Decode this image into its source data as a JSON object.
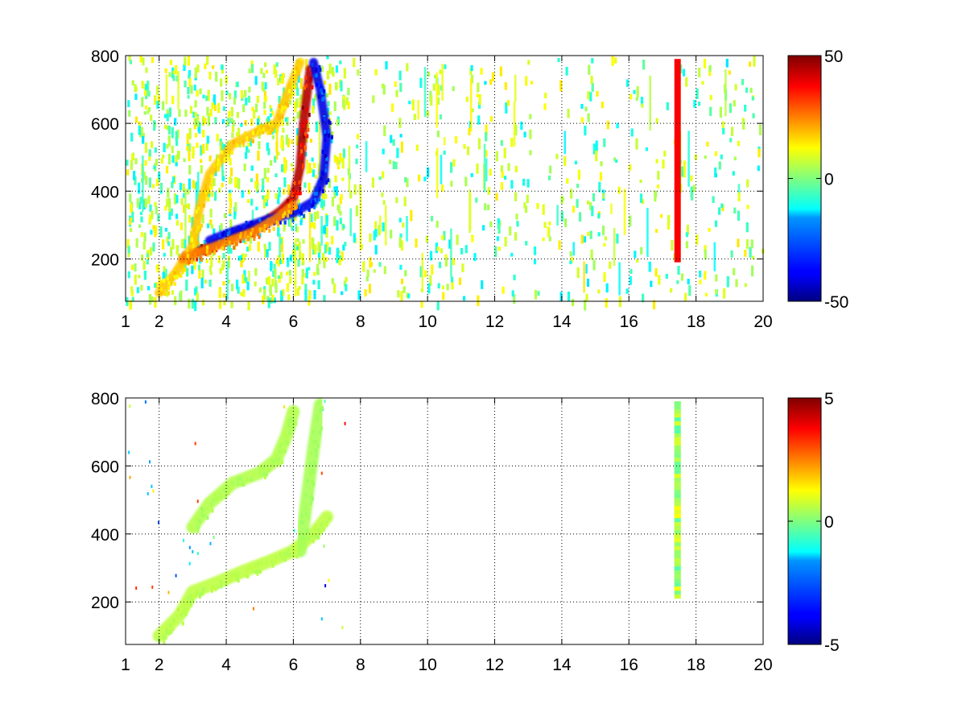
{
  "chart_data": [
    {
      "type": "heatmap",
      "title": "",
      "xlabel": "",
      "ylabel": "",
      "xlim": [
        1,
        20
      ],
      "ylim": [
        75,
        800
      ],
      "xticks": [
        "1",
        "2",
        "4",
        "6",
        "8",
        "10",
        "12",
        "14",
        "16",
        "18",
        "20"
      ],
      "yticks": [
        "200",
        "400",
        "600",
        "800"
      ],
      "grid": true,
      "grid_style": "dotted",
      "colorbar": {
        "min": -50,
        "max": 50,
        "ticks": [
          "50",
          "0",
          "-50"
        ],
        "colormap": "jet"
      },
      "features": [
        {
          "shape": "band",
          "points": [
            [
              2.8,
              210
            ],
            [
              3.5,
              235
            ],
            [
              4.2,
              270
            ],
            [
              5.0,
              300
            ],
            [
              5.6,
              340
            ],
            [
              6.0,
              380
            ],
            [
              6.2,
              470
            ],
            [
              6.3,
              600
            ],
            [
              6.5,
              760
            ]
          ],
          "value": 45
        },
        {
          "shape": "band",
          "points": [
            [
              3.5,
              255
            ],
            [
              4.3,
              285
            ],
            [
              5.2,
              315
            ],
            [
              6.0,
              335
            ],
            [
              6.6,
              370
            ],
            [
              6.9,
              440
            ],
            [
              7.0,
              560
            ],
            [
              6.8,
              700
            ],
            [
              6.6,
              780
            ]
          ],
          "value": -40
        },
        {
          "shape": "band",
          "points": [
            [
              2.0,
              100
            ],
            [
              2.5,
              160
            ],
            [
              3.0,
              240
            ],
            [
              3.2,
              350
            ],
            [
              3.5,
              450
            ],
            [
              4.2,
              540
            ],
            [
              5.0,
              580
            ],
            [
              5.5,
              600
            ],
            [
              5.8,
              680
            ],
            [
              6.2,
              780
            ]
          ],
          "value": 18
        },
        {
          "shape": "band",
          "points": [
            [
              2.7,
              200
            ],
            [
              3.2,
              220
            ],
            [
              4.0,
              250
            ],
            [
              4.8,
              280
            ],
            [
              5.5,
              320
            ],
            [
              6.0,
              360
            ]
          ],
          "value": 25
        },
        {
          "shape": "column",
          "x": 17.45,
          "y0": 190,
          "y1": 790,
          "value": 38
        }
      ]
    },
    {
      "type": "heatmap",
      "title": "",
      "xlabel": "",
      "ylabel": "",
      "xlim": [
        1,
        20
      ],
      "ylim": [
        75,
        800
      ],
      "xticks": [
        "1",
        "2",
        "4",
        "6",
        "8",
        "10",
        "12",
        "14",
        "16",
        "18",
        "20"
      ],
      "yticks": [
        "200",
        "400",
        "600",
        "800"
      ],
      "grid": true,
      "grid_style": "dotted",
      "colorbar": {
        "min": -5,
        "max": 5,
        "ticks": [
          "5",
          "0",
          "-5"
        ],
        "colormap": "jet"
      },
      "features": [
        {
          "shape": "band",
          "points": [
            [
              2.0,
              100
            ],
            [
              2.6,
              160
            ],
            [
              3.0,
              230
            ],
            [
              3.8,
              260
            ],
            [
              4.5,
              290
            ],
            [
              5.3,
              320
            ],
            [
              6.0,
              350
            ],
            [
              6.6,
              400
            ],
            [
              7.0,
              450
            ]
          ],
          "value": 0.6
        },
        {
          "shape": "band",
          "points": [
            [
              3.0,
              420
            ],
            [
              3.5,
              490
            ],
            [
              4.2,
              550
            ],
            [
              5.0,
              580
            ],
            [
              5.5,
              620
            ],
            [
              5.8,
              690
            ],
            [
              6.0,
              760
            ]
          ],
          "value": 0.5
        },
        {
          "shape": "band",
          "points": [
            [
              6.2,
              350
            ],
            [
              6.4,
              500
            ],
            [
              6.6,
              650
            ],
            [
              6.8,
              780
            ]
          ],
          "value": 0.4
        },
        {
          "shape": "column",
          "x": 17.45,
          "y0": 215,
          "y1": 790,
          "value": 0.8
        }
      ]
    }
  ]
}
